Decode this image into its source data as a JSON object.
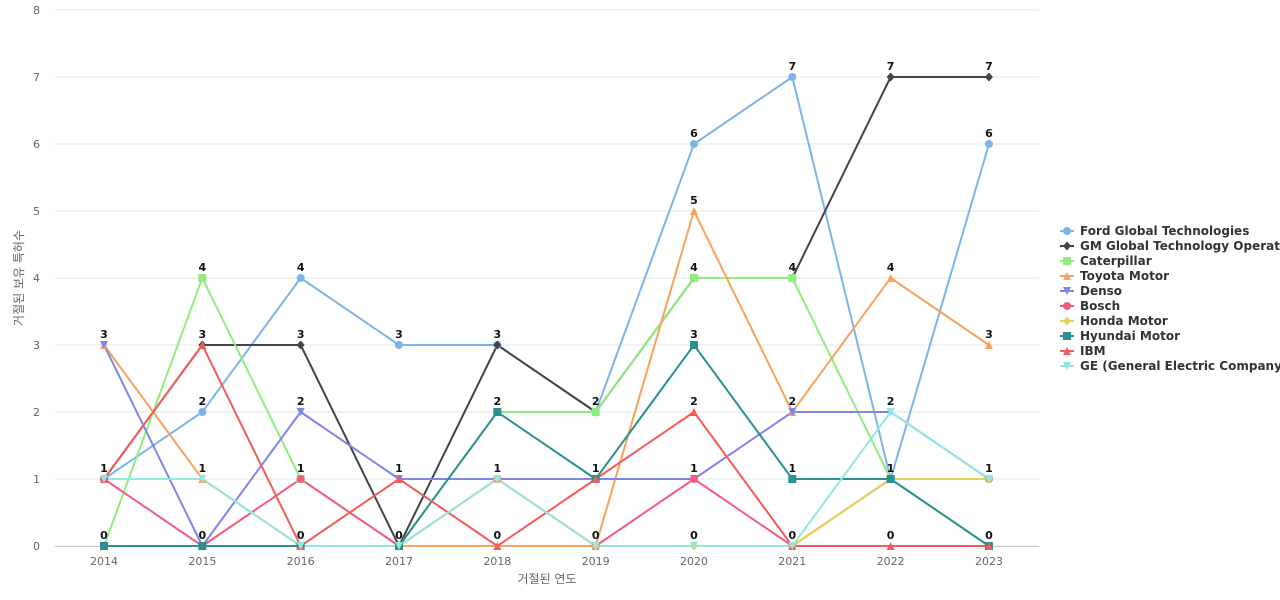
{
  "chart_data": {
    "type": "line",
    "title": "",
    "xlabel": "거절된 연도",
    "ylabel": "거절된 보유 특허수",
    "x": [
      "2014",
      "2015",
      "2016",
      "2017",
      "2018",
      "2019",
      "2020",
      "2021",
      "2022",
      "2023"
    ],
    "ylim": [
      0,
      8
    ],
    "yticks": [
      0,
      1,
      2,
      3,
      4,
      5,
      6,
      7,
      8
    ],
    "grid": true,
    "legend_position": "right",
    "series": [
      {
        "name": "Ford Global Technologies",
        "display_name": "Ford Global Technologies",
        "color": "#7cb5ec",
        "marker": "circle",
        "values": [
          1,
          2,
          4,
          3,
          3,
          2,
          6,
          7,
          1,
          6
        ]
      },
      {
        "name": "GM Global Technology Operations",
        "display_name": "GM Global Technology Operat...",
        "color": "#434348",
        "marker": "diamond",
        "values": [
          1,
          3,
          3,
          0,
          3,
          2,
          4,
          4,
          7,
          7
        ]
      },
      {
        "name": "Caterpillar",
        "display_name": "Caterpillar",
        "color": "#90ed7d",
        "marker": "square",
        "values": [
          0,
          4,
          1,
          0,
          2,
          2,
          4,
          4,
          1,
          0
        ]
      },
      {
        "name": "Toyota Motor",
        "display_name": "Toyota Motor",
        "color": "#f7a35c",
        "marker": "triangle",
        "values": [
          3,
          1,
          0,
          0,
          0,
          0,
          5,
          2,
          4,
          3
        ]
      },
      {
        "name": "Denso",
        "display_name": "Denso",
        "color": "#8085e9",
        "marker": "triangle-down",
        "values": [
          3,
          0,
          2,
          1,
          1,
          1,
          1,
          2,
          2,
          1
        ]
      },
      {
        "name": "Bosch",
        "display_name": "Bosch",
        "color": "#f15c80",
        "marker": "circle",
        "values": [
          1,
          0,
          1,
          0,
          1,
          0,
          1,
          0,
          1,
          1
        ]
      },
      {
        "name": "Honda Motor",
        "display_name": "Honda Motor",
        "color": "#e4d354",
        "marker": "diamond",
        "values": [
          0,
          0,
          0,
          0,
          1,
          0,
          0,
          0,
          1,
          1
        ]
      },
      {
        "name": "Hyundai Motor",
        "display_name": "Hyundai Motor",
        "color": "#2b908f",
        "marker": "square",
        "values": [
          0,
          0,
          0,
          0,
          2,
          1,
          3,
          1,
          1,
          0
        ]
      },
      {
        "name": "IBM",
        "display_name": "IBM",
        "color": "#f45b5b",
        "marker": "triangle",
        "values": [
          1,
          3,
          0,
          1,
          0,
          1,
          2,
          0,
          0,
          0
        ]
      },
      {
        "name": "GE (General Electric Company)",
        "display_name": "GE (General Electric Company)",
        "color": "#91e8e1",
        "marker": "triangle-down",
        "values": [
          1,
          1,
          0,
          0,
          1,
          0,
          0,
          0,
          2,
          1
        ]
      }
    ],
    "data_labels": [
      {
        "x": "2014",
        "value": "3",
        "y": 3
      },
      {
        "x": "2014",
        "value": "1",
        "y": 1
      },
      {
        "x": "2014",
        "value": "0",
        "y": 0
      },
      {
        "x": "2015",
        "value": "4",
        "y": 4
      },
      {
        "x": "2015",
        "value": "3",
        "y": 3
      },
      {
        "x": "2015",
        "value": "2",
        "y": 2
      },
      {
        "x": "2015",
        "value": "1",
        "y": 1
      },
      {
        "x": "2015",
        "value": "0",
        "y": 0
      },
      {
        "x": "2016",
        "value": "4",
        "y": 4
      },
      {
        "x": "2016",
        "value": "3",
        "y": 3
      },
      {
        "x": "2016",
        "value": "2",
        "y": 2
      },
      {
        "x": "2016",
        "value": "1",
        "y": 1
      },
      {
        "x": "2016",
        "value": "0",
        "y": 0
      },
      {
        "x": "2017",
        "value": "3",
        "y": 3
      },
      {
        "x": "2017",
        "value": "1",
        "y": 1
      },
      {
        "x": "2017",
        "value": "0",
        "y": 0
      },
      {
        "x": "2018",
        "value": "3",
        "y": 3
      },
      {
        "x": "2018",
        "value": "2",
        "y": 2
      },
      {
        "x": "2018",
        "value": "1",
        "y": 1
      },
      {
        "x": "2018",
        "value": "0",
        "y": 0
      },
      {
        "x": "2019",
        "value": "2",
        "y": 2
      },
      {
        "x": "2019",
        "value": "1",
        "y": 1
      },
      {
        "x": "2019",
        "value": "0",
        "y": 0
      },
      {
        "x": "2020",
        "value": "6",
        "y": 6
      },
      {
        "x": "2020",
        "value": "5",
        "y": 5
      },
      {
        "x": "2020",
        "value": "4",
        "y": 4
      },
      {
        "x": "2020",
        "value": "3",
        "y": 3
      },
      {
        "x": "2020",
        "value": "2",
        "y": 2
      },
      {
        "x": "2020",
        "value": "1",
        "y": 1
      },
      {
        "x": "2020",
        "value": "0",
        "y": 0
      },
      {
        "x": "2021",
        "value": "7",
        "y": 7
      },
      {
        "x": "2021",
        "value": "4",
        "y": 4
      },
      {
        "x": "2021",
        "value": "2",
        "y": 2
      },
      {
        "x": "2021",
        "value": "1",
        "y": 1
      },
      {
        "x": "2021",
        "value": "0",
        "y": 0
      },
      {
        "x": "2022",
        "value": "7",
        "y": 7
      },
      {
        "x": "2022",
        "value": "4",
        "y": 4
      },
      {
        "x": "2022",
        "value": "2",
        "y": 2
      },
      {
        "x": "2022",
        "value": "1",
        "y": 1
      },
      {
        "x": "2022",
        "value": "0",
        "y": 0
      },
      {
        "x": "2023",
        "value": "7",
        "y": 7
      },
      {
        "x": "2023",
        "value": "6",
        "y": 6
      },
      {
        "x": "2023",
        "value": "3",
        "y": 3
      },
      {
        "x": "2023",
        "value": "1",
        "y": 1
      },
      {
        "x": "2023",
        "value": "0",
        "y": 0
      }
    ]
  }
}
